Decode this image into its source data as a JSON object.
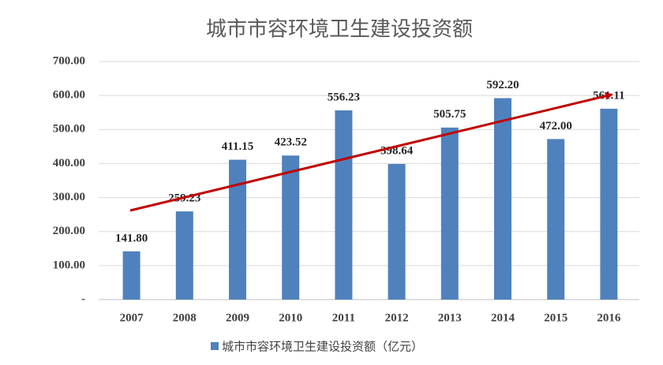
{
  "chart_data": {
    "type": "bar",
    "title": "城市市容环境卫生建设投资额",
    "categories": [
      "2007",
      "2008",
      "2009",
      "2010",
      "2011",
      "2012",
      "2013",
      "2014",
      "2015",
      "2016"
    ],
    "series": [
      {
        "name": "城市市容环境卫生建设投资额（亿元）",
        "color": "#4f81bd",
        "values": [
          141.8,
          259.23,
          411.15,
          423.52,
          556.23,
          398.64,
          505.75,
          592.2,
          472,
          561.11
        ],
        "value_labels": [
          "141.80",
          "259.23",
          "411.15",
          "423.52",
          "556.23",
          "398.64",
          "505.75",
          "592.20",
          "472.00",
          "561.11"
        ]
      }
    ],
    "ylim": [
      0,
      700
    ],
    "yticks": [
      {
        "value": 0,
        "label": "-"
      },
      {
        "value": 100,
        "label": "100.00"
      },
      {
        "value": 200,
        "label": "200.00"
      },
      {
        "value": 300,
        "label": "300.00"
      },
      {
        "value": 400,
        "label": "400.00"
      },
      {
        "value": 500,
        "label": "500.00"
      },
      {
        "value": 600,
        "label": "600.00"
      },
      {
        "value": 700,
        "label": "700.00"
      }
    ],
    "grid": true,
    "legend": "bottom"
  }
}
